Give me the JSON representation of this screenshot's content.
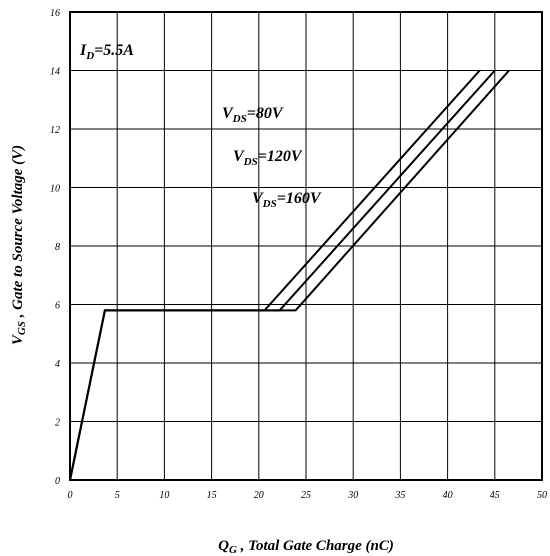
{
  "chart_data": {
    "type": "line",
    "title": "",
    "xlabel": {
      "main": "Q",
      "sub": "G",
      "rest": " , Total Gate Charge (nC)"
    },
    "ylabel": {
      "main": "V",
      "sub": "GS",
      "rest": " , Gate to Source Voltage (V)"
    },
    "xlim": [
      0,
      50
    ],
    "ylim": [
      0,
      16
    ],
    "xticks": [
      "0",
      "5",
      "10",
      "15",
      "20",
      "25",
      "30",
      "35",
      "40",
      "45",
      "50"
    ],
    "yticks": [
      "0",
      "2",
      "4",
      "6",
      "8",
      "10",
      "12",
      "14",
      "16"
    ],
    "grid": true,
    "annotations": [
      {
        "id": "id",
        "main": "I",
        "sub": "D",
        "rest": "=5.5A"
      },
      {
        "id": "v80",
        "main": "V",
        "sub": "DS",
        "rest": "=80V"
      },
      {
        "id": "v120",
        "main": "V",
        "sub": "DS",
        "rest": "=120V"
      },
      {
        "id": "v160",
        "main": "V",
        "sub": "DS",
        "rest": "=160V"
      }
    ],
    "series": [
      {
        "points": [
          [
            0,
            0
          ],
          [
            3.7,
            5.8
          ],
          [
            20.6,
            5.8
          ],
          [
            43.4,
            14.0
          ]
        ]
      },
      {
        "points": [
          [
            0,
            0
          ],
          [
            3.7,
            5.8
          ],
          [
            22.2,
            5.8
          ],
          [
            45.0,
            14.0
          ]
        ]
      },
      {
        "points": [
          [
            0,
            0
          ],
          [
            3.7,
            5.8
          ],
          [
            23.9,
            5.8
          ],
          [
            46.5,
            14.0
          ]
        ]
      }
    ]
  }
}
